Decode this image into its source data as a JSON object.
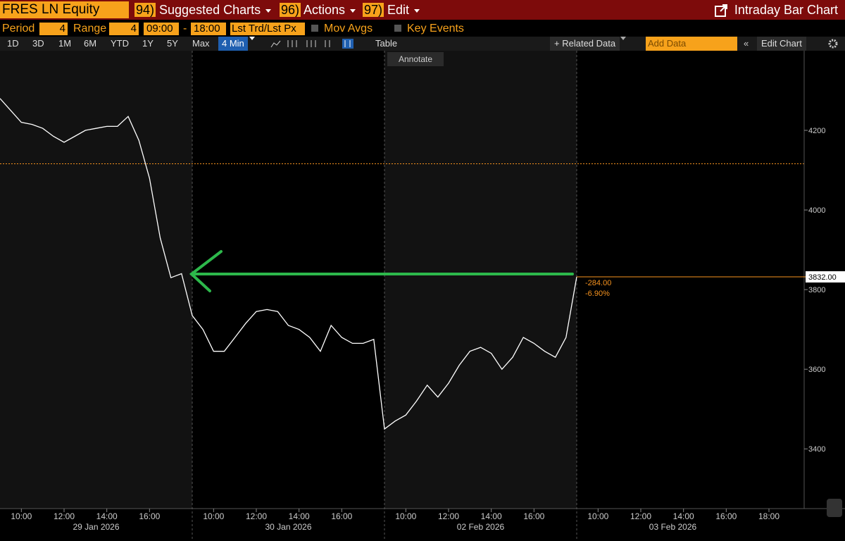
{
  "toolbar": {
    "security": "FRES LN Equity",
    "menus": [
      {
        "num": "94)",
        "label": "Suggested Charts"
      },
      {
        "num": "96)",
        "label": "Actions"
      },
      {
        "num": "97)",
        "label": "Edit"
      }
    ],
    "title": "Intraday Bar Chart"
  },
  "settings": {
    "period_label": "Period",
    "period": "4",
    "range_label": "Range",
    "range": "4",
    "start": "09:00",
    "dash": "-",
    "end": "18:00",
    "price_type": "Lst Trd/Lst Px",
    "mov_avgs": "Mov Avgs",
    "key_events": "Key Events"
  },
  "controls": {
    "ranges": [
      "1D",
      "3D",
      "1M",
      "6M",
      "YTD",
      "1Y",
      "5Y",
      "Max"
    ],
    "interval": "4 Min",
    "table": "Table",
    "related": "Related Data",
    "add_data": "Add Data",
    "edit_chart": "Edit Chart",
    "annotate": "Annotate"
  },
  "chart_data": {
    "type": "line",
    "color": "#ffffff",
    "values": [
      4280,
      4250,
      4220,
      4215,
      4205,
      4185,
      4170,
      4185,
      4200,
      4205,
      4210,
      4210,
      4235,
      4175,
      4080,
      3930,
      3830,
      3840,
      3735,
      3700,
      3645,
      3645,
      3680,
      3715,
      3745,
      3750,
      3745,
      3710,
      3700,
      3680,
      3645,
      3710,
      3680,
      3665,
      3665,
      3675,
      3450,
      3470,
      3485,
      3520,
      3560,
      3530,
      3565,
      3610,
      3645,
      3655,
      3640,
      3600,
      3630,
      3680,
      3665,
      3645,
      3630,
      3680,
      3832
    ],
    "ylim": [
      3250,
      4400
    ],
    "yticks": [
      3400,
      3600,
      3800,
      4000,
      4200
    ],
    "days": [
      "29 Jan 2026",
      "30 Jan 2026",
      "02 Feb 2026",
      "03 Feb 2026"
    ],
    "xticks": [
      [
        "10:00",
        "12:00",
        "14:00",
        "16:00"
      ],
      [
        "10:00",
        "12:00",
        "14:00",
        "16:00"
      ],
      [
        "10:00",
        "12:00",
        "14:00",
        "16:00"
      ],
      [
        "10:00",
        "12:00",
        "14:00",
        "16:00",
        "18:00"
      ]
    ],
    "reference_line": 4116,
    "reference_color": "#f7931e",
    "last_price": {
      "value": 3832,
      "label": "3832.00"
    },
    "change": "-284.00",
    "change_pct": "-6.90%"
  }
}
